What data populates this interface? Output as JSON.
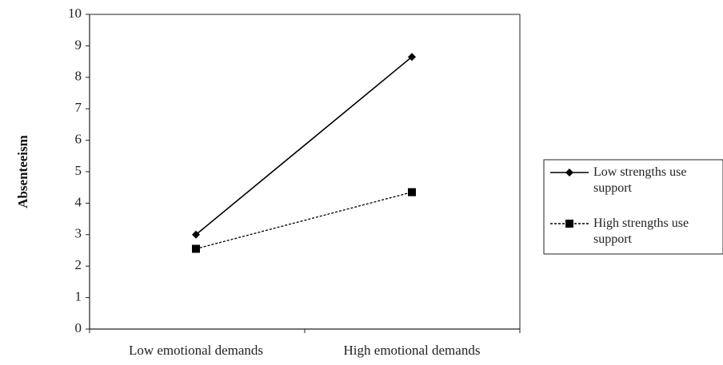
{
  "chart_data": {
    "type": "line",
    "title": "",
    "xlabel": "",
    "ylabel": "Absenteeism",
    "categories": [
      "Low emotional demands",
      "High emotional demands"
    ],
    "ylim": [
      0,
      10
    ],
    "yticks": [
      0,
      1,
      2,
      3,
      4,
      5,
      6,
      7,
      8,
      9,
      10
    ],
    "grid": false,
    "legend_position": "right",
    "series": [
      {
        "name": "Low strengths use support",
        "values": [
          3.0,
          8.65
        ],
        "marker": "diamond",
        "line_style": "solid",
        "color": "#000000"
      },
      {
        "name": "High strengths use support",
        "values": [
          2.55,
          4.35
        ],
        "marker": "square",
        "line_style": "dashed",
        "color": "#000000"
      }
    ]
  }
}
